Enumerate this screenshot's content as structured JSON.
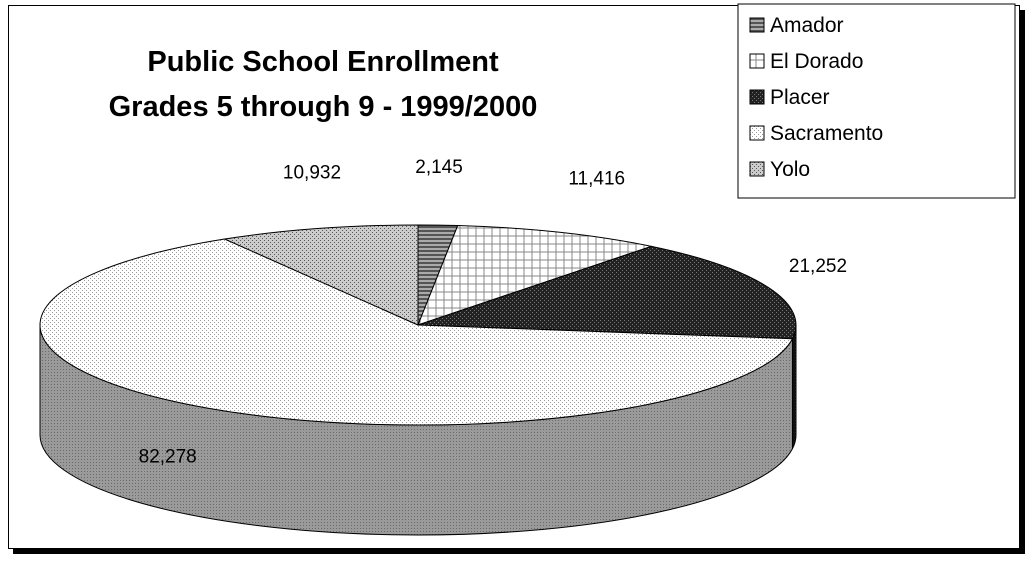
{
  "chart_data": {
    "type": "pie",
    "title_lines": [
      "Public School Enrollment",
      "Grades 5 through 9 - 1999/2000"
    ],
    "categories": [
      "Amador",
      "El Dorado",
      "Placer",
      "Sacramento",
      "Yolo"
    ],
    "values": [
      2145,
      11416,
      21252,
      82278,
      10932
    ],
    "value_labels": [
      "2,145",
      "11,416",
      "21,252",
      "82,278",
      "10,932"
    ],
    "legend_position": "top-right",
    "style": "3d"
  }
}
